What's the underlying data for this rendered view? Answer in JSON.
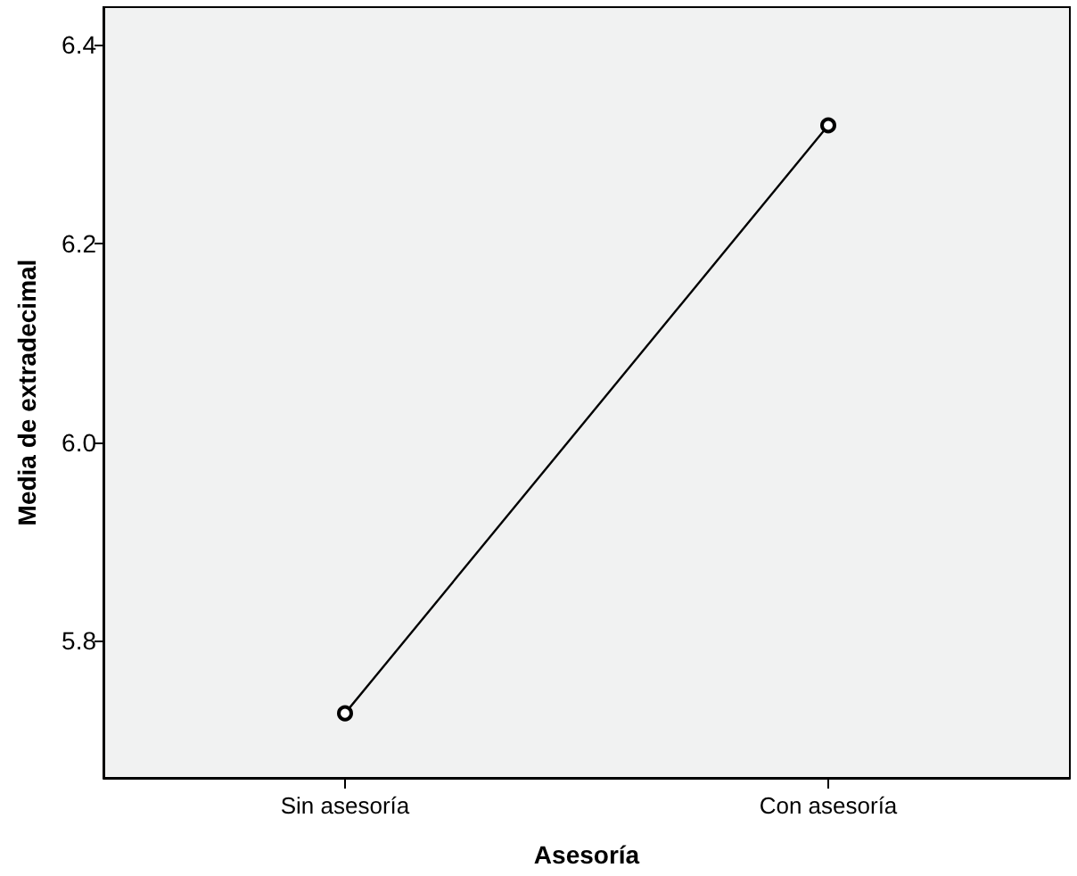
{
  "chart_data": {
    "type": "line",
    "xlabel": "Asesoría",
    "ylabel": "Media de extradecimal",
    "categories": [
      "Sin asesoría",
      "Con asesoría"
    ],
    "series": [
      {
        "color": "#000000",
        "values": [
          5.727,
          6.319
        ]
      }
    ],
    "ylim": [
      5.662,
      6.438
    ],
    "yticks": [
      5.8,
      {
        "value": 6.0,
        "label": "6.0"
      },
      6.2,
      6.4
    ],
    "grid": false,
    "marker": "circle",
    "line_style": "solid"
  }
}
